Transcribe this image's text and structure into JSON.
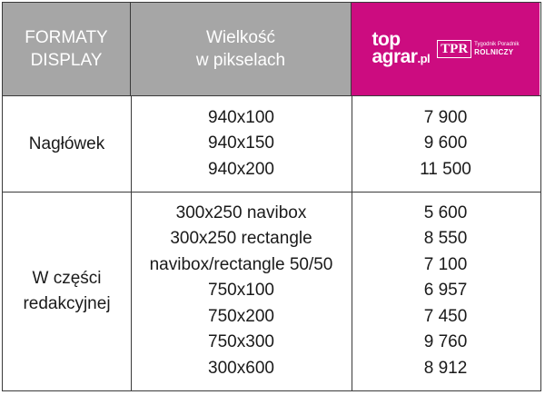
{
  "header": {
    "col1": [
      "FORMATY",
      "DISPLAY"
    ],
    "col2": [
      "Wielkość",
      "w pikselach"
    ],
    "logo": {
      "top": "top",
      "agrar": "agrar",
      "pl": ".pl",
      "tpr": "TPR",
      "tpr_small": "Tygodnik Poradnik",
      "tpr_big": "ROLNICZY"
    }
  },
  "rows": [
    {
      "label": [
        "Nagłówek"
      ],
      "sizes": [
        "940x100",
        "940x150",
        "940x200"
      ],
      "values": [
        "7 900",
        "9 600",
        "11 500"
      ]
    },
    {
      "label": [
        "W części",
        "redakcyjnej"
      ],
      "sizes": [
        "300x250 navibox",
        "300x250 rectangle",
        "navibox/rectangle 50/50",
        "750x100",
        "750x200",
        "750x300",
        "300x600"
      ],
      "values": [
        "5 600",
        "8 550",
        "7 100",
        "6 957",
        "7 450",
        "9 760",
        "8 912"
      ]
    }
  ]
}
